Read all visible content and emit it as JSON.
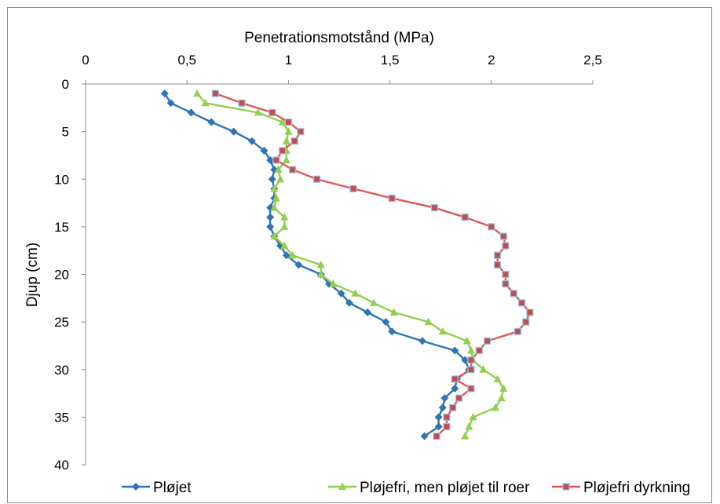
{
  "chart_data": {
    "type": "line",
    "xlabel": "Penetrationsmotstånd (MPa)",
    "ylabel": "Djup (cm)",
    "xlim": [
      0,
      2.5
    ],
    "ylim": [
      0,
      40
    ],
    "x_axis_position": "top",
    "y_axis_reversed": true,
    "grid": false,
    "legend_position": "bottom",
    "x_ticks": [
      "0",
      "0,5",
      "1",
      "1,5",
      "2",
      "2,5"
    ],
    "y_ticks": [
      "0",
      "5",
      "10",
      "15",
      "20",
      "25",
      "30",
      "35",
      "40"
    ],
    "series": [
      {
        "name": "Pløjet",
        "color": "#2e75b6",
        "marker": "diamond",
        "depth": [
          1,
          2,
          3,
          4,
          5,
          6,
          7,
          8,
          9,
          10,
          11,
          12,
          13,
          14,
          15,
          16,
          17,
          18,
          19,
          20,
          21,
          22,
          23,
          24,
          25,
          26,
          27,
          28,
          29,
          30,
          31,
          32,
          33,
          34,
          35,
          36,
          37
        ],
        "mpa": [
          0.39,
          0.42,
          0.52,
          0.62,
          0.73,
          0.82,
          0.88,
          0.91,
          0.93,
          0.92,
          0.93,
          0.93,
          0.91,
          0.91,
          0.91,
          0.93,
          0.96,
          0.99,
          1.05,
          1.16,
          1.2,
          1.26,
          1.3,
          1.39,
          1.48,
          1.51,
          1.66,
          1.82,
          1.87,
          1.89,
          1.83,
          1.82,
          1.77,
          1.76,
          1.74,
          1.74,
          1.67
        ]
      },
      {
        "name": "Pløjefri, men pløjet til roer",
        "color": "#92d050",
        "marker": "triangle",
        "depth": [
          1,
          2,
          3,
          4,
          5,
          6,
          7,
          8,
          9,
          10,
          11,
          12,
          13,
          14,
          15,
          16,
          17,
          18,
          19,
          20,
          21,
          22,
          23,
          24,
          25,
          26,
          27,
          28,
          29,
          30,
          31,
          32,
          33,
          34,
          35,
          36,
          37
        ],
        "mpa": [
          0.55,
          0.59,
          0.85,
          0.97,
          1.0,
          0.99,
          0.99,
          0.99,
          0.95,
          0.96,
          0.93,
          0.94,
          0.93,
          0.98,
          0.98,
          0.93,
          0.98,
          1.02,
          1.16,
          1.16,
          1.22,
          1.33,
          1.42,
          1.52,
          1.69,
          1.76,
          1.88,
          1.9,
          1.91,
          1.96,
          2.03,
          2.06,
          2.05,
          2.02,
          1.91,
          1.89,
          1.87
        ]
      },
      {
        "name": "Pløjefri dyrkning",
        "color": "#e15759",
        "marker": "square",
        "depth": [
          1,
          2,
          3,
          4,
          5,
          6,
          7,
          8,
          9,
          10,
          11,
          12,
          13,
          14,
          15,
          16,
          17,
          18,
          19,
          20,
          21,
          22,
          23,
          24,
          25,
          26,
          27,
          28,
          29,
          30,
          31,
          32,
          33,
          34,
          35,
          36,
          37
        ],
        "mpa": [
          0.64,
          0.77,
          0.92,
          1.0,
          1.06,
          1.03,
          0.97,
          0.94,
          1.02,
          1.14,
          1.32,
          1.51,
          1.72,
          1.87,
          2.0,
          2.06,
          2.07,
          2.03,
          2.03,
          2.07,
          2.07,
          2.11,
          2.15,
          2.19,
          2.17,
          2.13,
          1.98,
          1.94,
          1.9,
          1.9,
          1.82,
          1.9,
          1.84,
          1.81,
          1.78,
          1.78,
          1.73
        ]
      }
    ]
  }
}
